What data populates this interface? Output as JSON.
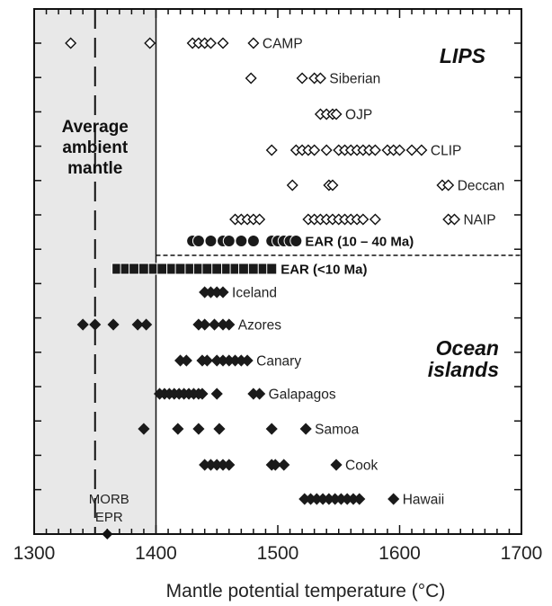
{
  "chart_data": {
    "type": "scatter",
    "title": "",
    "xlabel": "Mantle potential temperature (°C)",
    "ylabel": "",
    "xlim": [
      1300,
      1700
    ],
    "x_ticks": [
      1300,
      1400,
      1500,
      1600,
      1700
    ],
    "grid": false,
    "ambient_band": {
      "x_range": [
        1300,
        1400
      ],
      "label": [
        "Average",
        "ambient",
        "mantle"
      ],
      "color": "#e8e8e8"
    },
    "morb_line": {
      "x": 1350,
      "label": [
        "MORB",
        "EPR"
      ],
      "marker_x": 1360
    },
    "groups": [
      {
        "name": "LIPS"
      },
      {
        "name": "Ocean islands",
        "label_lines": [
          "Ocean",
          "islands"
        ]
      }
    ],
    "series": [
      {
        "name": "CAMP",
        "marker": "open-diamond",
        "group": "LIPS",
        "values": [
          1330,
          1395,
          1430,
          1435,
          1440,
          1445,
          1455,
          1480
        ]
      },
      {
        "name": "Siberian",
        "marker": "open-diamond",
        "group": "LIPS",
        "values": [
          1478,
          1520,
          1530,
          1535
        ]
      },
      {
        "name": "OJP",
        "marker": "open-diamond",
        "group": "LIPS",
        "values": [
          1535,
          1540,
          1545,
          1548
        ]
      },
      {
        "name": "CLIP",
        "marker": "open-diamond",
        "group": "LIPS",
        "values": [
          1495,
          1515,
          1520,
          1525,
          1530,
          1540,
          1550,
          1555,
          1560,
          1565,
          1570,
          1575,
          1580,
          1590,
          1595,
          1600,
          1610,
          1618
        ]
      },
      {
        "name": "Deccan",
        "marker": "open-diamond",
        "group": "LIPS",
        "values": [
          1512,
          1542,
          1545,
          1635,
          1640
        ]
      },
      {
        "name": "NAIP",
        "marker": "open-diamond",
        "group": "LIPS",
        "values": [
          1465,
          1470,
          1475,
          1480,
          1485,
          1525,
          1530,
          1535,
          1540,
          1545,
          1550,
          1555,
          1560,
          1565,
          1570,
          1580,
          1640,
          1645
        ]
      },
      {
        "name": "EAR (10 – 40 Ma)",
        "marker": "filled-circle",
        "group": "LIPS",
        "values": [
          1430,
          1435,
          1445,
          1455,
          1460,
          1470,
          1480,
          1495,
          1500,
          1505,
          1510,
          1515
        ]
      },
      {
        "name": "EAR (<10 Ma)",
        "marker": "filled-square",
        "group": "Ocean islands",
        "values": [
          1368,
          1375,
          1382,
          1390,
          1398,
          1405,
          1413,
          1420,
          1428,
          1435,
          1442,
          1450,
          1458,
          1465,
          1472,
          1480,
          1488,
          1495
        ]
      },
      {
        "name": "Iceland",
        "marker": "filled-diamond",
        "group": "Ocean islands",
        "values": [
          1440,
          1445,
          1450,
          1455
        ]
      },
      {
        "name": "Azores",
        "marker": "filled-diamond",
        "group": "Ocean islands",
        "values": [
          1340,
          1350,
          1365,
          1385,
          1392,
          1435,
          1440,
          1448,
          1455,
          1460
        ]
      },
      {
        "name": "Canary",
        "marker": "filled-diamond",
        "group": "Ocean islands",
        "values": [
          1420,
          1425,
          1438,
          1442,
          1450,
          1455,
          1460,
          1465,
          1470,
          1475
        ]
      },
      {
        "name": "Galapagos",
        "marker": "filled-diamond",
        "group": "Ocean islands",
        "values": [
          1403,
          1407,
          1411,
          1415,
          1419,
          1423,
          1427,
          1431,
          1435,
          1438,
          1450,
          1480,
          1485
        ]
      },
      {
        "name": "Samoa",
        "marker": "filled-diamond",
        "group": "Ocean islands",
        "values": [
          1390,
          1418,
          1435,
          1452,
          1495,
          1523
        ]
      },
      {
        "name": "Cook",
        "marker": "filled-diamond",
        "group": "Ocean islands",
        "values": [
          1440,
          1445,
          1450,
          1455,
          1460,
          1495,
          1498,
          1505,
          1548
        ]
      },
      {
        "name": "Hawaii",
        "marker": "filled-diamond",
        "group": "Ocean islands",
        "values": [
          1522,
          1527,
          1532,
          1537,
          1542,
          1547,
          1552,
          1557,
          1562,
          1567,
          1595
        ]
      }
    ]
  }
}
